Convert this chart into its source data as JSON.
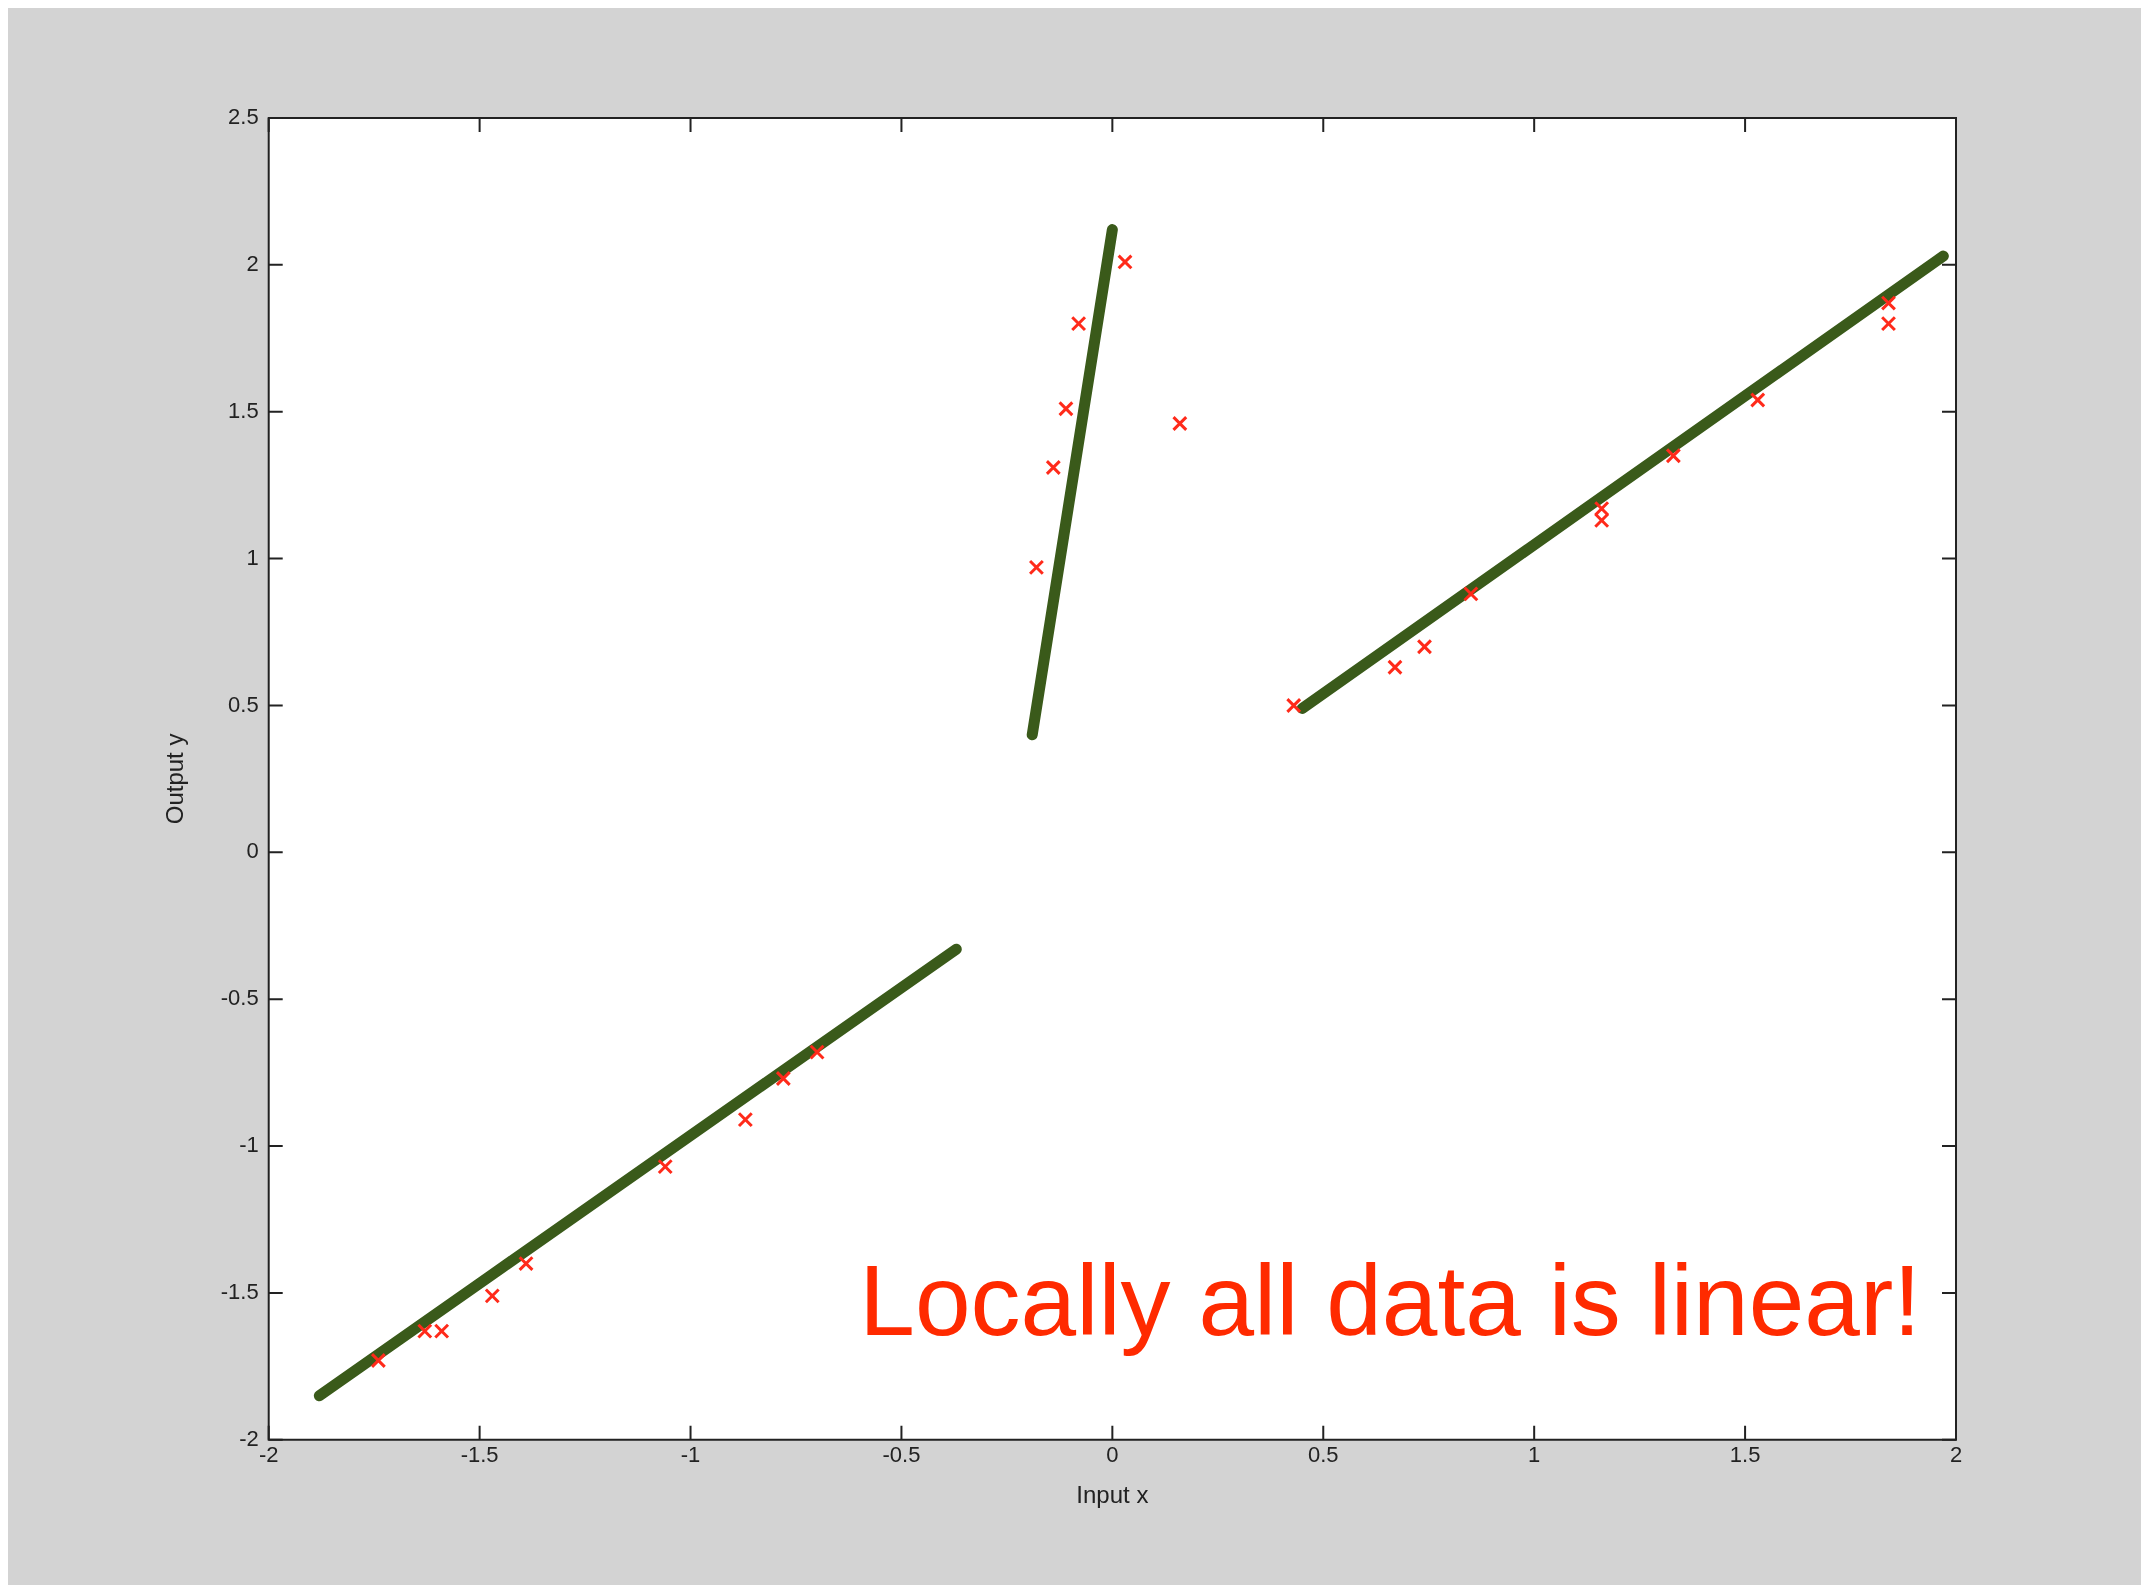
{
  "chart_data": {
    "type": "scatter",
    "xlabel": "Input x",
    "ylabel": "Output y",
    "xlim": [
      -2,
      2
    ],
    "xticks": [
      -2,
      -1.5,
      -1,
      -0.5,
      0,
      0.5,
      1,
      1.5,
      2
    ],
    "ylim": [
      -2,
      2.5
    ],
    "yticks": [
      -2,
      -1.5,
      -1,
      -0.5,
      0,
      0.5,
      1,
      1.5,
      2,
      2.5
    ],
    "grid": false,
    "legend": false,
    "marker": "cross",
    "annotations": [
      "Locally all data is linear!"
    ],
    "series": [
      {
        "type": "scatter",
        "color": "#ff2a1a",
        "x": [
          -1.74,
          -1.63,
          -1.59,
          -1.47,
          -1.39,
          -1.06,
          -0.87,
          -0.78,
          -0.7,
          -0.18,
          -0.14,
          -0.11,
          -0.08,
          0.03,
          0.16,
          0.43,
          0.67,
          0.74,
          0.85,
          1.16,
          1.16,
          1.33,
          1.53,
          1.84,
          1.84
        ],
        "values": [
          -1.73,
          -1.63,
          -1.63,
          -1.51,
          -1.4,
          -1.07,
          -0.91,
          -0.77,
          -0.68,
          0.97,
          1.31,
          1.51,
          1.8,
          2.01,
          1.46,
          0.5,
          0.63,
          0.7,
          0.88,
          1.13,
          1.17,
          1.35,
          1.54,
          1.8,
          1.87
        ]
      },
      {
        "type": "line",
        "color": "#3a5a1a",
        "marker": "none",
        "x": [
          -1.88,
          -0.37
        ],
        "values": [
          -1.85,
          -0.33
        ]
      },
      {
        "type": "line",
        "color": "#3a5a1a",
        "marker": "none",
        "x": [
          -0.19,
          0.0
        ],
        "values": [
          0.4,
          2.12
        ]
      },
      {
        "type": "line",
        "color": "#3a5a1a",
        "marker": "none",
        "x": [
          0.45,
          1.97
        ],
        "values": [
          0.49,
          2.03
        ]
      }
    ]
  }
}
